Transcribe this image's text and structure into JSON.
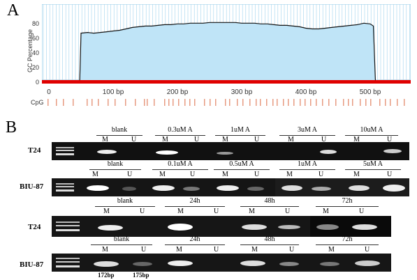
{
  "panel_a": {
    "letter": "A",
    "chart_data": {
      "type": "area",
      "ylabel": "GC Percentage",
      "y_ticks": [
        "0",
        "20",
        "40",
        "60",
        "80"
      ],
      "x_ticks": [
        "0",
        "100 bp",
        "200 bp",
        "300 bp",
        "400 bp",
        "500 bp"
      ],
      "xlim": [
        0,
        600
      ],
      "ylim": [
        0,
        95
      ],
      "island_start": 48,
      "island_end": 508,
      "x": [
        48,
        50,
        60,
        70,
        80,
        90,
        100,
        110,
        120,
        130,
        140,
        150,
        160,
        170,
        180,
        190,
        200,
        210,
        220,
        230,
        240,
        250,
        260,
        270,
        280,
        290,
        300,
        310,
        320,
        330,
        340,
        350,
        360,
        370,
        380,
        390,
        400,
        410,
        420,
        430,
        440,
        450,
        460,
        470,
        480,
        490,
        500,
        505,
        508
      ],
      "y": [
        0,
        66,
        67,
        66,
        67,
        68,
        69,
        70,
        72,
        74,
        75,
        76,
        76,
        77,
        78,
        78,
        79,
        79,
        80,
        80,
        80,
        81,
        81,
        81,
        81,
        81,
        80,
        80,
        80,
        79,
        79,
        78,
        77,
        77,
        76,
        75,
        73,
        72,
        72,
        73,
        74,
        75,
        76,
        77,
        78,
        80,
        79,
        76,
        0
      ],
      "cpg_label": "CpG"
    },
    "colors": {
      "fill": "#bfe4f7",
      "line": "#111111",
      "baseline": "#e00000",
      "cpg_mark": "#e79b82",
      "grid": "#9fd3ee"
    }
  },
  "panel_b": {
    "letter": "B",
    "label_m": "M",
    "label_u": "U",
    "rows": [
      {
        "cell": "T24",
        "groups": [
          "blank",
          "0.3uM A",
          "1uM A",
          "3uM A",
          "10uM A"
        ]
      },
      {
        "cell": "BIU-87",
        "groups": [
          "blank",
          "0.1uM A",
          "0.5uM A",
          "1uM A",
          "5uM A"
        ]
      },
      {
        "cell": "T24",
        "groups": [
          "blank",
          "24h",
          "48h",
          "72h"
        ]
      },
      {
        "cell": "BIU-87",
        "groups": [
          "blank",
          "24h",
          "48h",
          "72h"
        ]
      }
    ],
    "bp_labels": [
      "172bp",
      "175bp"
    ]
  }
}
